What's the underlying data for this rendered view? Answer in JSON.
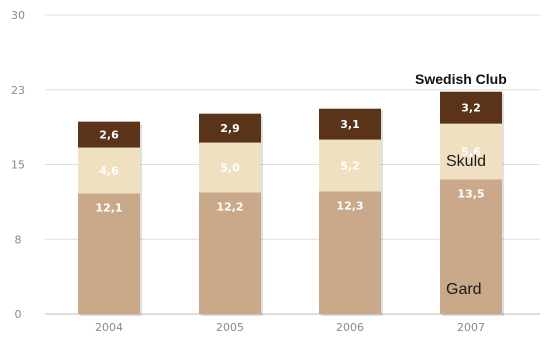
{
  "chart_data": {
    "type": "bar",
    "stacked": true,
    "categories": [
      "2004",
      "2005",
      "2006",
      "2007"
    ],
    "series": [
      {
        "name": "Gard",
        "values": [
          12.1,
          12.2,
          12.3,
          13.5
        ],
        "labels": [
          "12,1",
          "12,2",
          "12,3",
          "13,5"
        ],
        "color": "#c9a98a",
        "label_color": "#ffffff"
      },
      {
        "name": "Skuld",
        "values": [
          4.6,
          5.0,
          5.2,
          5.6
        ],
        "labels": [
          "4,6",
          "5,0",
          "5,2",
          "5,6"
        ],
        "color": "#efe0c2",
        "label_color": "#ffffff"
      },
      {
        "name": "Swedish Club",
        "values": [
          2.6,
          2.9,
          3.1,
          3.2
        ],
        "labels": [
          "2,6",
          "2,9",
          "3,1",
          "3,2"
        ],
        "color": "#5a3418",
        "label_color": "#ffffff"
      }
    ],
    "yticks": [
      "0",
      "8",
      "15",
      "23",
      "30"
    ],
    "ytick_values": [
      0,
      7.5,
      15,
      22.5,
      30
    ],
    "ylim": [
      0,
      30
    ],
    "grid": true,
    "grid_color": "#dddddd",
    "annotations": {
      "swedish_club": "Swedish Club",
      "skuld": "Skuld",
      "gard": "Gard"
    }
  }
}
